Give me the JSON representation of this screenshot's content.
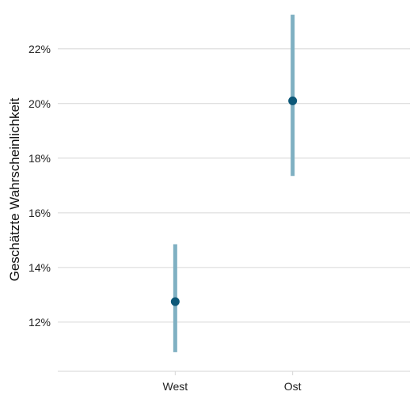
{
  "chart_data": {
    "type": "pointrange",
    "ylabel": "Geschätzte Wahrscheinlichkeit",
    "xlabel": "",
    "categories": [
      "West",
      "Ost"
    ],
    "estimates": [
      12.75,
      20.1
    ],
    "ci_lower": [
      10.9,
      17.35
    ],
    "ci_upper": [
      14.85,
      23.25
    ],
    "ylim": [
      10.2,
      23.5
    ],
    "yticks": [
      12,
      14,
      16,
      18,
      20,
      22
    ],
    "ytick_labels": [
      "12%",
      "14%",
      "16%",
      "18%",
      "20%",
      "22%"
    ],
    "grid": true,
    "colors": {
      "point": "#0d5878",
      "interval": "#7fb0c2"
    }
  }
}
